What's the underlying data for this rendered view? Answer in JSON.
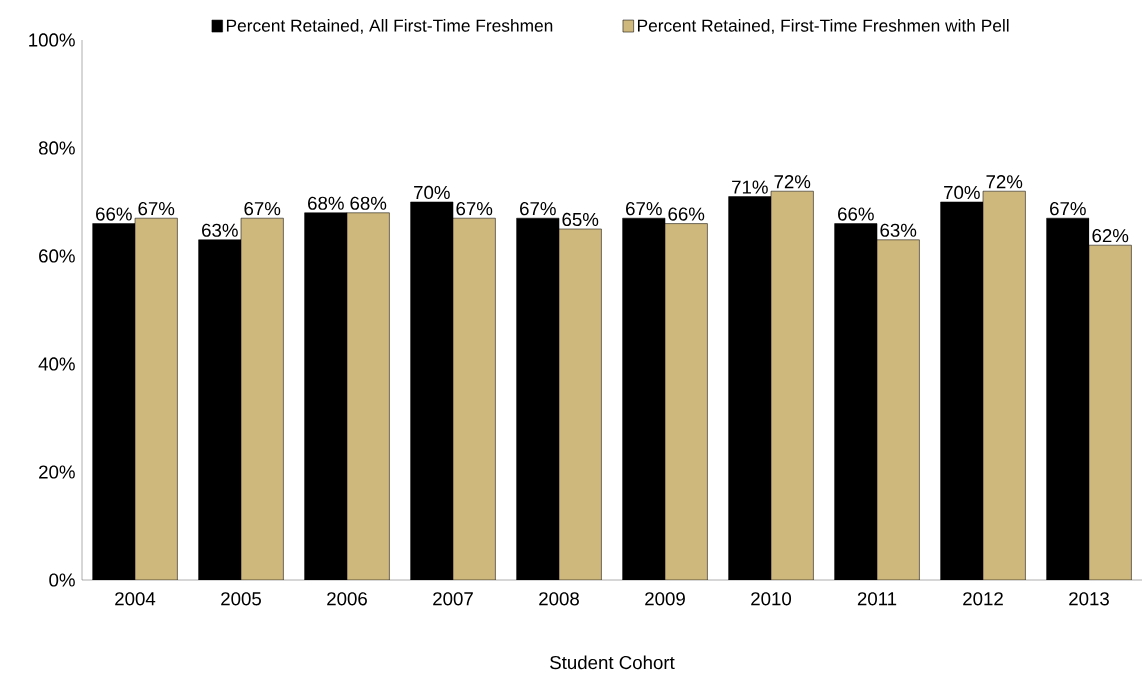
{
  "chart_data": {
    "type": "bar",
    "xlabel": "Student Cohort",
    "categories": [
      "2004",
      "2005",
      "2006",
      "2007",
      "2008",
      "2009",
      "2010",
      "2011",
      "2012",
      "2013"
    ],
    "series": [
      {
        "name": "Percent Retained, All First-Time Freshmen",
        "color": "#000000",
        "values": [
          66,
          63,
          68,
          70,
          67,
          67,
          71,
          66,
          70,
          67
        ],
        "value_labels": [
          "66%",
          "63%",
          "68%",
          "70%",
          "67%",
          "67%",
          "71%",
          "66%",
          "70%",
          "67%"
        ]
      },
      {
        "name": "Percent Retained, First-Time Freshmen with Pell",
        "color": "#cfb87c",
        "values": [
          67,
          67,
          68,
          67,
          65,
          66,
          72,
          63,
          72,
          62
        ],
        "value_labels": [
          "67%",
          "67%",
          "68%",
          "67%",
          "65%",
          "66%",
          "72%",
          "63%",
          "72%",
          "62%"
        ]
      }
    ],
    "ylim": [
      0,
      100
    ],
    "yticks": [
      {
        "value": 0,
        "label": "0%"
      },
      {
        "value": 20,
        "label": "20%"
      },
      {
        "value": 40,
        "label": "40%"
      },
      {
        "value": 60,
        "label": "60%"
      },
      {
        "value": 80,
        "label": "80%"
      },
      {
        "value": 100,
        "label": "100%"
      }
    ],
    "grid": false,
    "legend": "top"
  }
}
